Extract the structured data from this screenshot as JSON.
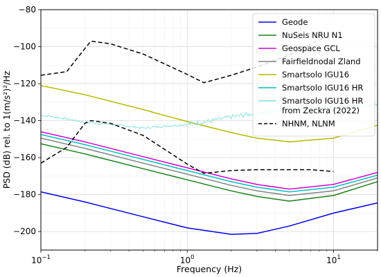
{
  "chart_data": {
    "type": "line",
    "xlabel": "Frequency (Hz)",
    "ylabel": "PSD (dB) rel. to 1(m/s²)²/Hz",
    "xscale": "log",
    "xlim": [
      0.1,
      20
    ],
    "ylim": [
      -210,
      -80
    ],
    "x_tick_labels": [
      {
        "value": 0.1,
        "base": "10",
        "exp": "−1"
      },
      {
        "value": 1,
        "base": "10",
        "exp": "0"
      },
      {
        "value": 10,
        "base": "10",
        "exp": "1"
      }
    ],
    "y_ticks": [
      -200,
      -180,
      -160,
      -140,
      -120,
      -100,
      -80
    ],
    "y_tick_labels": [
      "−200",
      "−180",
      "−160",
      "−140",
      "−120",
      "−100",
      "−80"
    ],
    "grid": true,
    "legend_position": "top-right",
    "series": [
      {
        "name": "Geode",
        "color": "#0000ee",
        "style": "solid",
        "x": [
          0.1,
          0.2,
          0.5,
          1,
          2,
          3,
          5,
          10,
          20
        ],
        "y": [
          -178.5,
          -184,
          -192,
          -198,
          -201.5,
          -201,
          -197,
          -190,
          -184.5
        ]
      },
      {
        "name": "NuSeis NRU N1",
        "color": "#1a7f1a",
        "style": "solid",
        "x": [
          0.1,
          0.2,
          0.5,
          1,
          2,
          3,
          5,
          10,
          20
        ],
        "y": [
          -152.5,
          -158,
          -166,
          -172,
          -178,
          -181,
          -183.5,
          -180.5,
          -173
        ]
      },
      {
        "name": "Geospace GCL",
        "color": "#d400d4",
        "style": "solid",
        "x": [
          0.1,
          0.2,
          0.5,
          1,
          2,
          3,
          5,
          10,
          20
        ],
        "y": [
          -146,
          -151.5,
          -159.5,
          -165.5,
          -171.5,
          -174.5,
          -177,
          -174.5,
          -168
        ]
      },
      {
        "name": "Fairfieldnodal Zland",
        "color": "#808080",
        "style": "solid",
        "x": [
          0.1,
          0.2,
          0.5,
          1,
          2,
          3,
          5,
          10,
          20
        ],
        "y": [
          -149.5,
          -155,
          -163,
          -169,
          -175,
          -178,
          -180.5,
          -178,
          -171
        ]
      },
      {
        "name": "Smartsolo IGU16",
        "color": "#b8b800",
        "style": "solid",
        "x": [
          0.1,
          0.2,
          0.5,
          1,
          2,
          3,
          5,
          10,
          20
        ],
        "y": [
          -121,
          -126,
          -134,
          -140.5,
          -146.5,
          -149.5,
          -151.5,
          -149.5,
          -142.5
        ]
      },
      {
        "name": "Smartsolo IGU16 HR",
        "color": "#00bfbf",
        "style": "solid",
        "x": [
          0.1,
          0.2,
          0.5,
          1,
          2,
          3,
          5,
          10,
          20
        ],
        "y": [
          -147.5,
          -153,
          -161,
          -167,
          -173,
          -176,
          -178.5,
          -176,
          -169.5
        ]
      },
      {
        "name": "Smartsolo IGU16 HR\nfrom Zeckra (2022)",
        "color": "#7fe0e0",
        "style": "noisy",
        "x": [
          0.1,
          0.15,
          0.2,
          0.3,
          0.5,
          0.7,
          1,
          1.5,
          2,
          3,
          5,
          7,
          10,
          15,
          20
        ],
        "y": [
          -137,
          -139,
          -141,
          -142,
          -144,
          -143,
          -142,
          -140,
          -138,
          -136,
          -134,
          -133,
          -133,
          -132,
          -131
        ]
      },
      {
        "name": "NHNM, NLNM",
        "color": "#000000",
        "style": "dashed",
        "x": [
          0.1,
          0.15,
          0.2,
          0.22,
          0.3,
          0.5,
          1,
          1.3,
          2,
          3,
          5,
          7,
          10
        ],
        "y": [
          -115.5,
          -113.5,
          -101,
          -97,
          -98.5,
          -104,
          -115,
          -119.5,
          -115.5,
          -111,
          -104.5,
          -98.5,
          -93
        ]
      },
      {
        "name": "",
        "color": "#000000",
        "style": "dashed",
        "x": [
          0.1,
          0.15,
          0.2,
          0.22,
          0.3,
          0.5,
          0.8,
          1,
          1.3,
          2,
          3,
          5,
          7,
          10
        ],
        "y": [
          -163,
          -154.5,
          -141.5,
          -140,
          -141.5,
          -148,
          -158.5,
          -163.5,
          -168.5,
          -167,
          -166.5,
          -166.5,
          -166.5,
          -167.5
        ]
      }
    ]
  },
  "legend": {
    "items": [
      {
        "label_lines": [
          "Geode"
        ],
        "color": "#0000ee",
        "style": "solid"
      },
      {
        "label_lines": [
          "NuSeis NRU N1"
        ],
        "color": "#1a7f1a",
        "style": "solid"
      },
      {
        "label_lines": [
          "Geospace GCL"
        ],
        "color": "#d400d4",
        "style": "solid"
      },
      {
        "label_lines": [
          "Fairfieldnodal Zland"
        ],
        "color": "#808080",
        "style": "solid"
      },
      {
        "label_lines": [
          "Smartsolo IGU16"
        ],
        "color": "#b8b800",
        "style": "solid"
      },
      {
        "label_lines": [
          "Smartsolo IGU16 HR"
        ],
        "color": "#00bfbf",
        "style": "solid"
      },
      {
        "label_lines": [
          "Smartsolo IGU16 HR",
          "from Zeckra (2022)"
        ],
        "color": "#7fe0e0",
        "style": "solid"
      },
      {
        "label_lines": [
          "NHNM, NLNM"
        ],
        "color": "#000000",
        "style": "dashed"
      }
    ]
  }
}
